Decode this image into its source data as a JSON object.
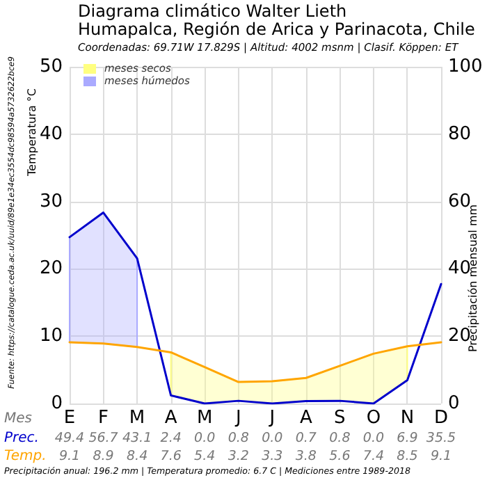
{
  "chart_data": {
    "type": "line",
    "title": "Diagrama climático Walter Lieth\nHumapalca, Región de Arica y Parinacota, Chile",
    "subtitle": "Coordenadas: 69.71W 17.829S | Altitud: 4002 msnm | Clasif. Köppen: ET",
    "xlabel": "Mes",
    "ylabel": "Temperatura °C",
    "y2label": "Precipitación mensual mm",
    "categories": [
      "E",
      "F",
      "M",
      "A",
      "M",
      "J",
      "J",
      "A",
      "S",
      "O",
      "N",
      "D"
    ],
    "series": [
      {
        "name": "Prec.",
        "color": "#0000cc",
        "axis": "y2",
        "values": [
          49.4,
          56.7,
          43.1,
          2.4,
          0.0,
          0.8,
          0.0,
          0.7,
          0.8,
          0.0,
          6.9,
          35.5
        ],
        "value_labels": [
          "49.4",
          "56.7",
          "43.1",
          "2.4",
          "0.0",
          "0.8",
          "0.0",
          "0.7",
          "0.8",
          "0.0",
          "6.9",
          "35.5"
        ]
      },
      {
        "name": "Temp.",
        "color": "#ffa500",
        "values": [
          9.1,
          8.9,
          8.4,
          7.6,
          5.4,
          3.2,
          3.3,
          3.8,
          5.6,
          7.4,
          8.5,
          9.1
        ],
        "value_labels": [
          "9.1",
          "8.9",
          "8.4",
          "7.6",
          "5.4",
          "3.2",
          "3.3",
          "3.8",
          "5.6",
          "7.4",
          "8.5",
          "9.1"
        ]
      },
      {
        "name": "meses secos",
        "type": "area",
        "color": "#ffff80",
        "values": [
          null,
          null,
          null,
          null,
          null,
          null,
          null,
          null,
          null,
          null,
          null,
          null
        ],
        "upper": [
          null,
          null,
          null,
          7.6,
          5.4,
          3.2,
          3.3,
          3.8,
          5.6,
          7.4,
          8.5,
          null
        ],
        "lower": [
          null,
          null,
          null,
          1.2,
          0,
          0.4,
          0,
          0.4,
          0.4,
          0,
          3.5,
          null
        ]
      },
      {
        "name": "meses húmedos",
        "type": "area",
        "color": "#aaaaff",
        "axis": "y2",
        "values": [
          null,
          null,
          null,
          null,
          null,
          null,
          null,
          null,
          null,
          null,
          null,
          null
        ],
        "upper": [
          49.4,
          56.7,
          43.1,
          null,
          null,
          null,
          null,
          null,
          null,
          null,
          null,
          null
        ],
        "lower": [
          18.2,
          17.8,
          16.8,
          null,
          null,
          null,
          null,
          null,
          null,
          null,
          null,
          null
        ]
      }
    ],
    "ylim": [
      0,
      50
    ],
    "yticks": [
      0,
      10,
      20,
      30,
      40,
      50
    ],
    "y2lim": [
      0,
      100
    ],
    "y2ticks": [
      0,
      20,
      40,
      60,
      80,
      100
    ],
    "grid": true,
    "legend": "top left",
    "marker": "none",
    "line_style": "solid",
    "annotations": [
      "Fuente: https://catalogue.ceda.ac.uk/uuid/89e1e34ec3554dc98594a5732622bce9",
      "Precipitación anual: 196.2 mm | Temperatura promedio: 6.7 C | Mediciones entre 1989-2018"
    ]
  }
}
